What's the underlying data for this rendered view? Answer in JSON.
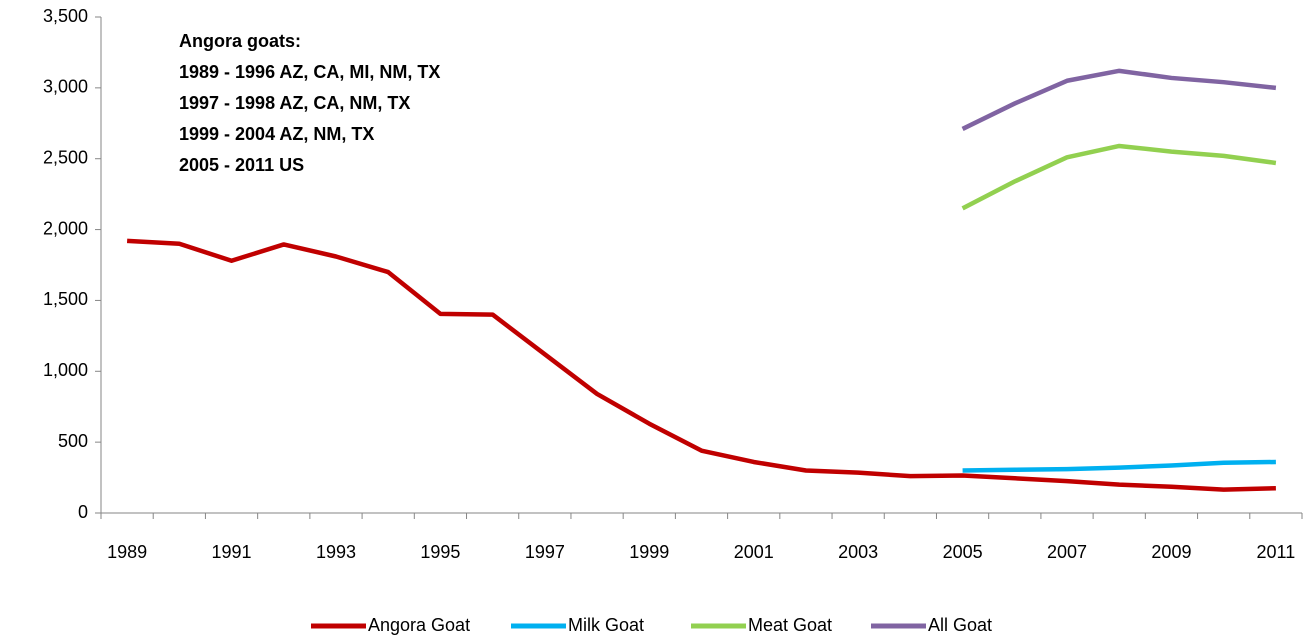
{
  "chart_data": {
    "type": "line",
    "annotations": [
      "Angora goats:",
      "1989 - 1996 AZ, CA, MI, NM, TX",
      "1997 - 1998 AZ, CA, NM, TX",
      "1999 - 2004 AZ, NM, TX",
      "2005 - 2011 US"
    ],
    "categories": [
      "1989",
      null,
      "1991",
      null,
      "1993",
      null,
      "1995",
      null,
      "1997",
      null,
      "1999",
      null,
      "2001",
      null,
      "2003",
      null,
      "2005",
      null,
      "2007",
      null,
      "2009",
      null,
      "2011"
    ],
    "series": [
      {
        "name": "Angora Goat",
        "color": "#c00000",
        "values": [
          1920,
          1900,
          1780,
          1895,
          1810,
          1700,
          1405,
          1400,
          1120,
          840,
          630,
          440,
          360,
          300,
          285,
          260,
          265,
          245,
          225,
          200,
          185,
          165,
          175
        ]
      },
      {
        "name": "Milk Goat",
        "color": "#00b0f0",
        "values": [
          null,
          null,
          null,
          null,
          null,
          null,
          null,
          null,
          null,
          null,
          null,
          null,
          null,
          null,
          null,
          null,
          300,
          305,
          310,
          320,
          335,
          355,
          360
        ]
      },
      {
        "name": "Meat Goat",
        "color": "#92d050",
        "values": [
          null,
          null,
          null,
          null,
          null,
          null,
          null,
          null,
          null,
          null,
          null,
          null,
          null,
          null,
          null,
          null,
          2150,
          2340,
          2510,
          2590,
          2550,
          2520,
          2470
        ]
      },
      {
        "name": "All Goat",
        "color": "#8064a2",
        "values": [
          null,
          null,
          null,
          null,
          null,
          null,
          null,
          null,
          null,
          null,
          null,
          null,
          null,
          null,
          null,
          null,
          2710,
          2890,
          3050,
          3120,
          3070,
          3040,
          3000
        ]
      }
    ],
    "ylim": [
      0,
      3500
    ],
    "yticks": [
      0,
      500,
      {
        "value": 1000,
        "label": "1,000"
      },
      {
        "value": 1500,
        "label": "1,500"
      },
      {
        "value": 2000,
        "label": "2,000"
      },
      {
        "value": 2500,
        "label": "2,500"
      },
      {
        "value": 3000,
        "label": "3,000"
      },
      {
        "value": 3500,
        "label": "3,500"
      }
    ],
    "grid": false,
    "legend": "bottom"
  }
}
